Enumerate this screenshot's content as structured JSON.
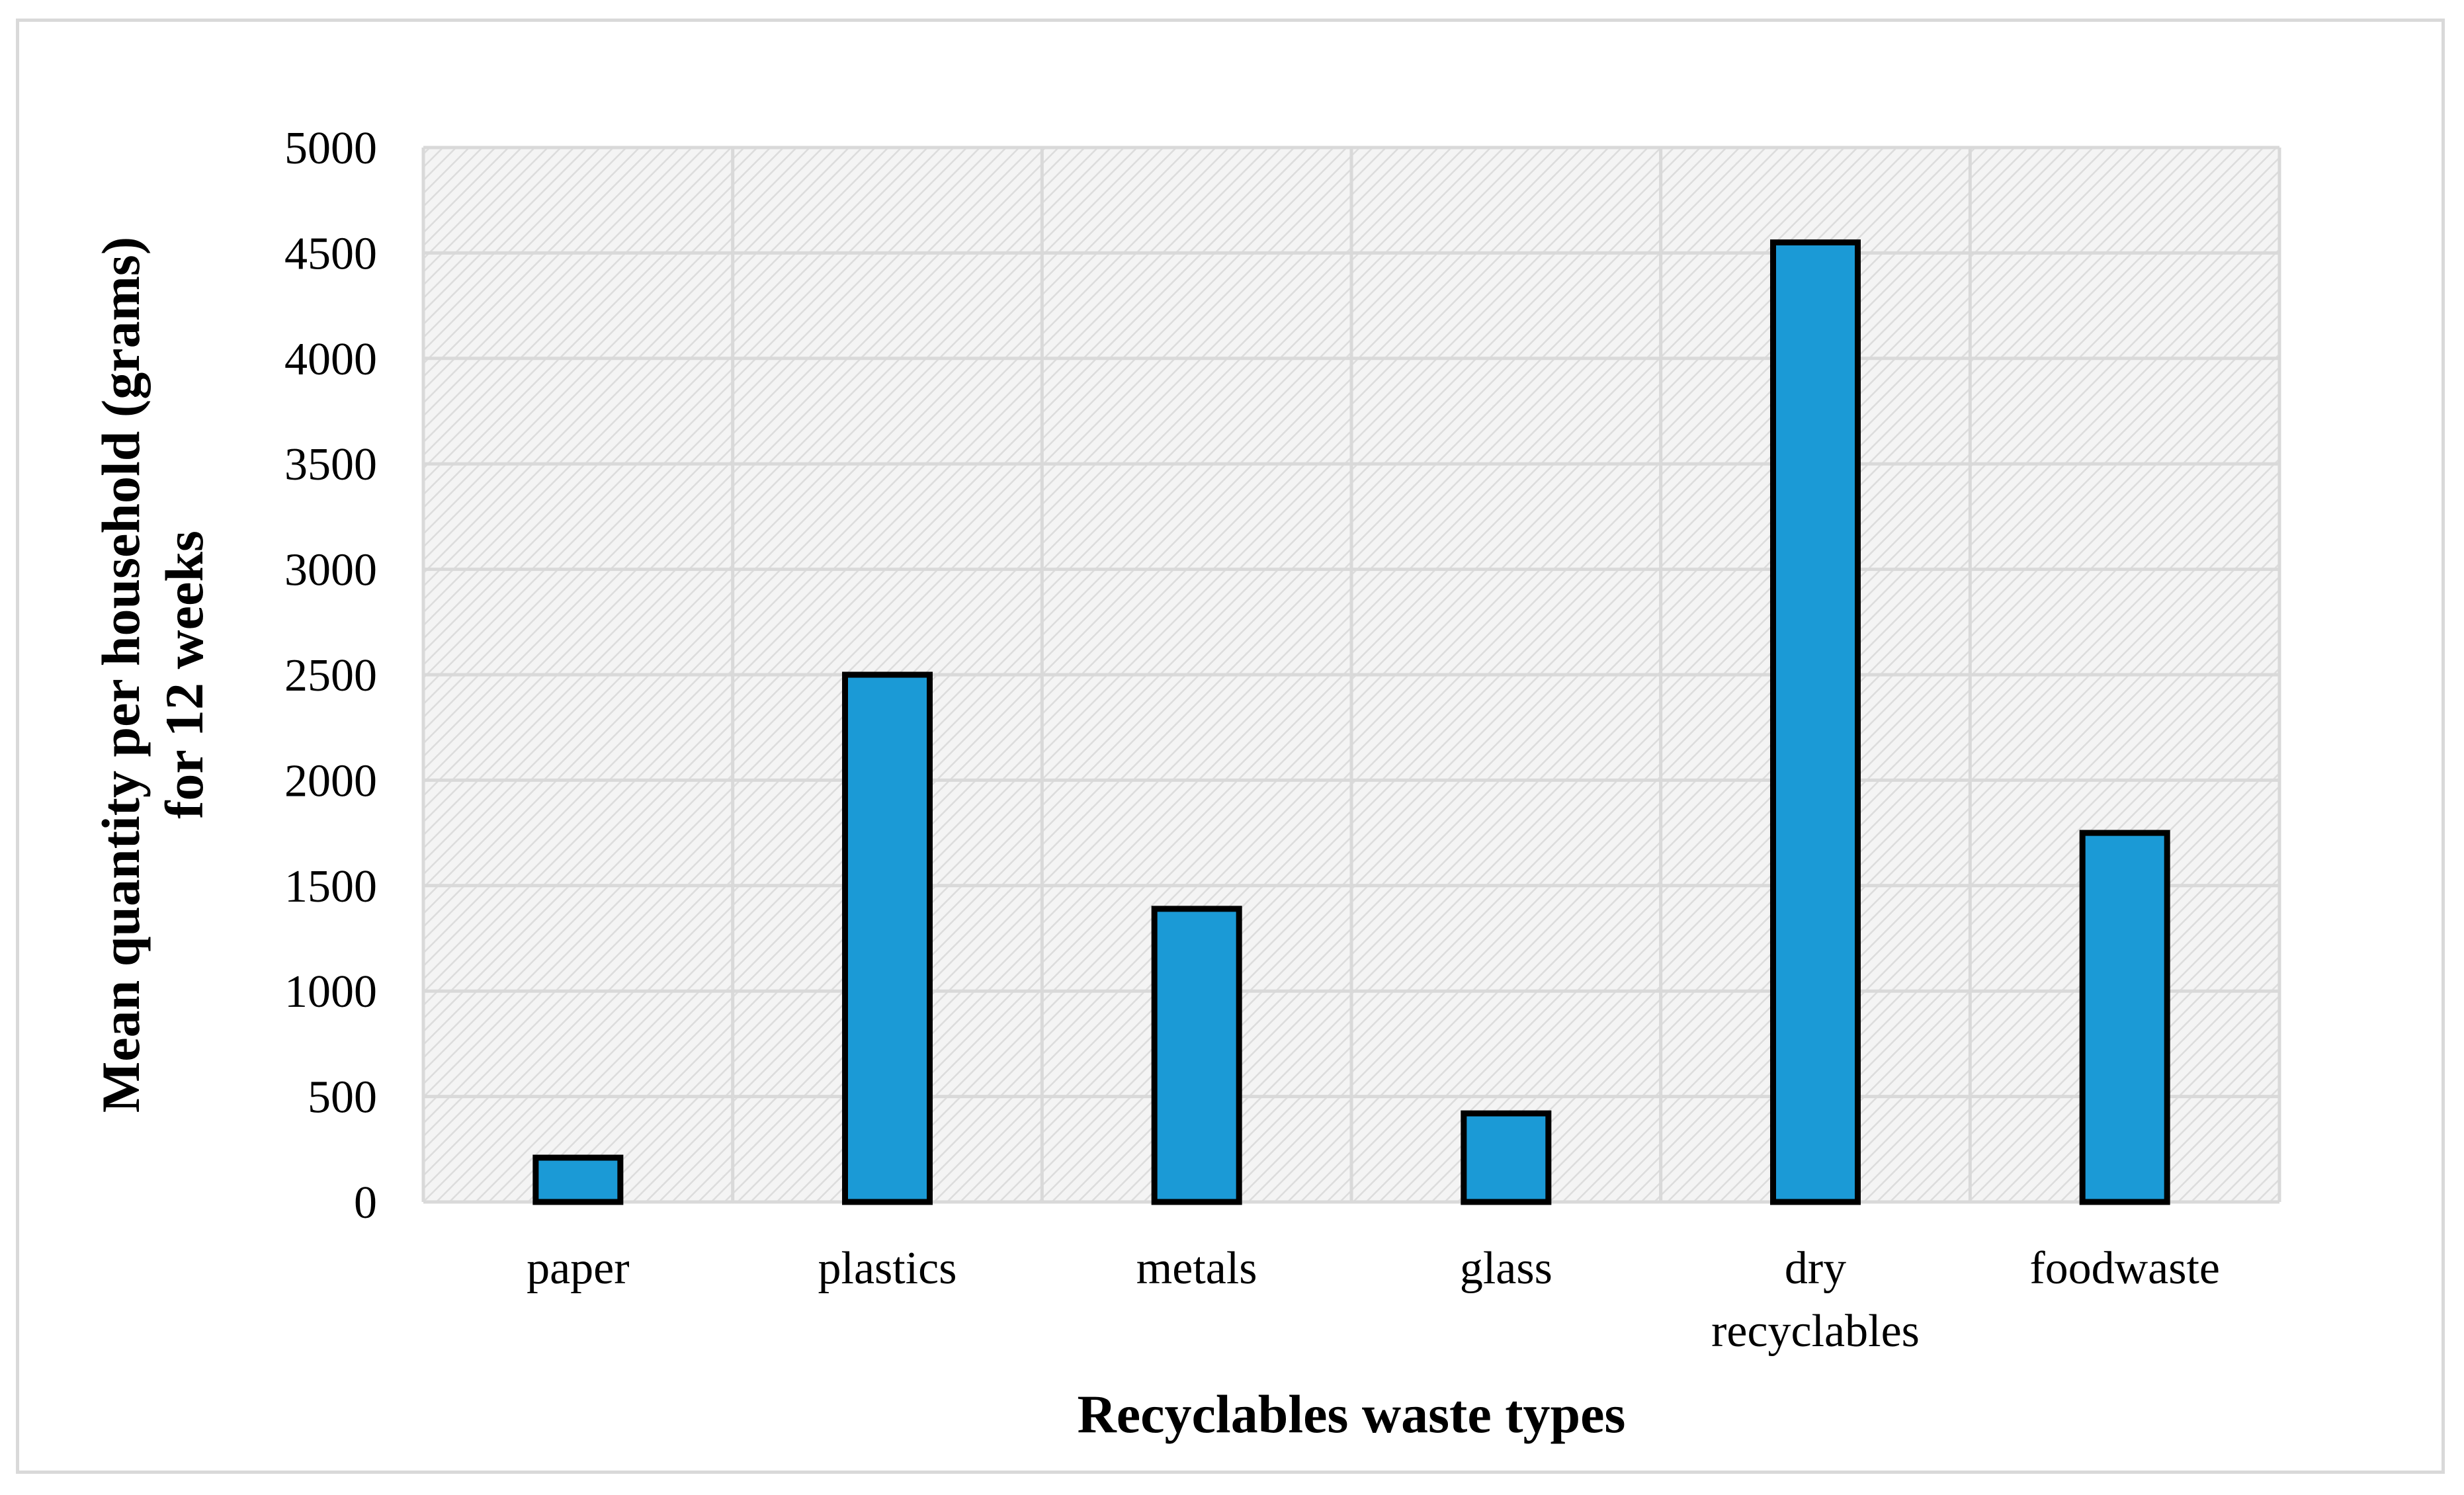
{
  "chart_data": {
    "type": "bar",
    "categories": [
      [
        "paper"
      ],
      [
        "plastics"
      ],
      [
        "metals"
      ],
      [
        "glass"
      ],
      [
        "dry",
        "recyclables"
      ],
      [
        "foodwaste"
      ]
    ],
    "values": [
      210,
      2500,
      1390,
      420,
      4550,
      1750
    ],
    "title": "",
    "xlabel": "Recyclables waste types",
    "ylabel": [
      "Mean quantity per household (grams)",
      "for 12 weeks"
    ],
    "ylim": [
      0,
      5000
    ],
    "yticks": [
      0,
      500,
      1000,
      1500,
      2000,
      2500,
      3000,
      3500,
      4000,
      4500,
      5000
    ],
    "grid": true,
    "legend": "none",
    "colors": {
      "bar_fill": "#1b9ad6",
      "bar_stroke": "#000000",
      "grid": "#d9d9d9",
      "hatch": "#dcdcdc",
      "plot_background": "#f4f4f4"
    }
  }
}
